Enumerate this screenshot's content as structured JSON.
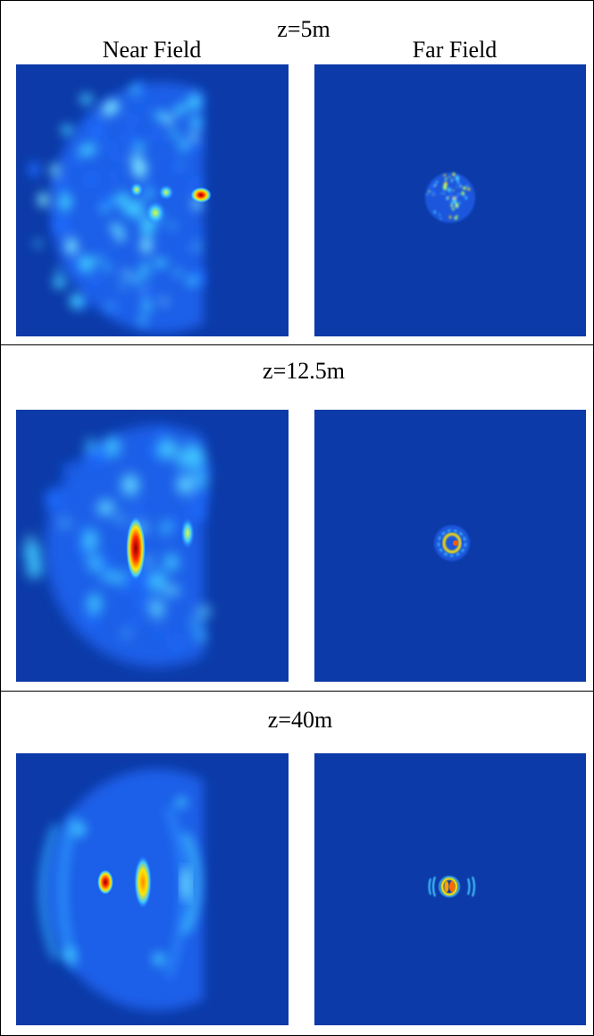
{
  "header": {
    "near_label": "Near Field",
    "far_label": "Far Field"
  },
  "rows": [
    {
      "z_label": "z=5m"
    },
    {
      "z_label": "z=12.5m"
    },
    {
      "z_label": "z=40m"
    }
  ],
  "colors": {
    "background": "#0c3aa8",
    "low": "#1e6cff",
    "mid": "#3fc8ff",
    "high": "#ffe600",
    "peak": "#ff2a00",
    "max": "#8b0000"
  }
}
